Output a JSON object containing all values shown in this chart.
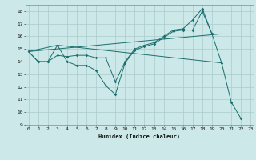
{
  "xlabel": "Humidex (Indice chaleur)",
  "background_color": "#cde8e8",
  "grid_color": "#aacccc",
  "line_color": "#1a6e6e",
  "series_with_markers": [
    {
      "x": [
        0,
        1,
        2,
        3,
        4,
        5,
        6,
        7,
        8,
        9,
        10,
        11,
        12,
        13,
        14,
        15,
        16,
        17,
        18,
        19,
        20,
        21,
        22
      ],
      "y": [
        14.8,
        14.0,
        14.0,
        15.3,
        14.0,
        13.7,
        13.7,
        13.3,
        12.1,
        11.4,
        13.9,
        14.9,
        15.2,
        15.4,
        15.9,
        16.4,
        16.5,
        16.5,
        18.0,
        16.2,
        13.9,
        10.8,
        9.5
      ]
    },
    {
      "x": [
        0,
        1,
        2,
        3,
        4,
        5,
        6,
        7,
        8,
        9,
        10,
        11,
        12,
        13,
        14,
        15,
        16,
        17,
        18,
        19
      ],
      "y": [
        14.8,
        14.0,
        14.0,
        14.5,
        14.4,
        14.5,
        14.5,
        14.3,
        14.3,
        12.4,
        14.0,
        15.0,
        15.3,
        15.5,
        16.0,
        16.5,
        16.6,
        17.3,
        18.2,
        16.2
      ]
    }
  ],
  "series_lines": [
    {
      "x": [
        0,
        3,
        20
      ],
      "y": [
        14.8,
        15.3,
        13.9
      ]
    },
    {
      "x": [
        0,
        20
      ],
      "y": [
        14.8,
        16.2
      ]
    }
  ],
  "ylim": [
    9,
    18.5
  ],
  "xlim": [
    -0.3,
    23.3
  ],
  "yticks": [
    9,
    10,
    11,
    12,
    13,
    14,
    15,
    16,
    17,
    18
  ],
  "xticks": [
    0,
    1,
    2,
    3,
    4,
    5,
    6,
    7,
    8,
    9,
    10,
    11,
    12,
    13,
    14,
    15,
    16,
    17,
    18,
    19,
    20,
    21,
    22,
    23
  ]
}
